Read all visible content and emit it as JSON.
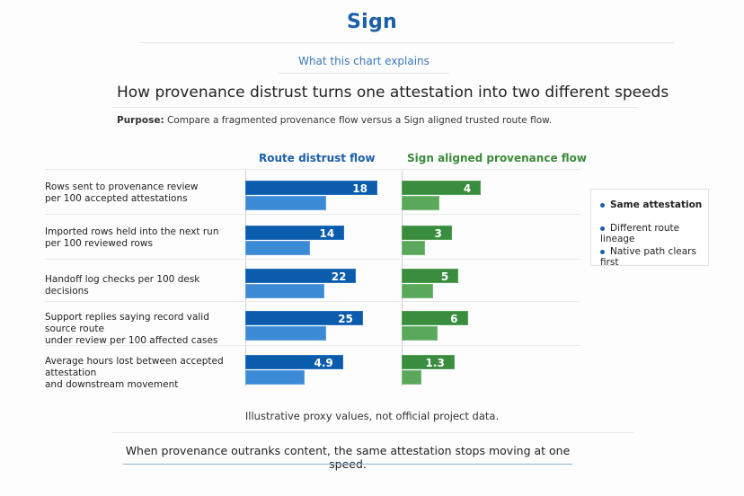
{
  "header": {
    "brand": "Sign",
    "subheading": "What this chart explains",
    "title": "How provenance distrust turns one attestation into two different speeds",
    "purpose_label": "Purpose:",
    "purpose_text": "Compare a fragmented provenance flow versus a Sign aligned trusted route flow."
  },
  "legend": {
    "items": [
      "Same attestation",
      "Different route lineage",
      "Native path clears first"
    ]
  },
  "footer": {
    "note": "Illustrative proxy values, not official project data.",
    "takeaway": "When provenance outranks content, the same attestation stops moving at one speed."
  },
  "colors": {
    "brand_blue": "#1a5fa8",
    "dark_blue": "#0b5cad",
    "light_blue": "#3b8ad6",
    "dark_green": "#3a8c3e",
    "light_green": "#5aa85c"
  },
  "chart_data": {
    "type": "bar",
    "orientation": "horizontal",
    "title": "How provenance distrust turns one attestation into two different speeds",
    "series": [
      {
        "name": "Route distrust flow",
        "color": "#0b5cad"
      },
      {
        "name": "Sign aligned provenance flow",
        "color": "#3a8c3e"
      }
    ],
    "categories": [
      [
        "Rows sent to provenance review",
        "per 100 accepted attestations"
      ],
      [
        "Imported rows held into the next run",
        "per 100 reviewed rows"
      ],
      [
        "Handoff log checks per 100 desk decisions"
      ],
      [
        "Support replies saying record valid source route",
        "under review per 100 affected cases"
      ],
      [
        "Average hours lost between accepted attestation",
        "and downstream movement"
      ]
    ],
    "distrust_values": [
      "18",
      "14",
      "22",
      "25",
      "4.9"
    ],
    "aligned_values": [
      "4",
      "3",
      "5",
      "6",
      "1.3"
    ],
    "distrust_secondary_ratio": [
      0.61,
      0.65,
      0.71,
      0.69,
      0.61
    ],
    "aligned_secondary_ratio": [
      0.48,
      0.46,
      0.56,
      0.54,
      0.37
    ],
    "distrust_bar_scale": [
      1.0,
      0.75,
      0.84,
      0.89,
      0.74
    ],
    "aligned_bar_scale": [
      0.6,
      0.38,
      0.43,
      0.5,
      0.4
    ],
    "note": "Illustrative proxy values, not official project data."
  }
}
